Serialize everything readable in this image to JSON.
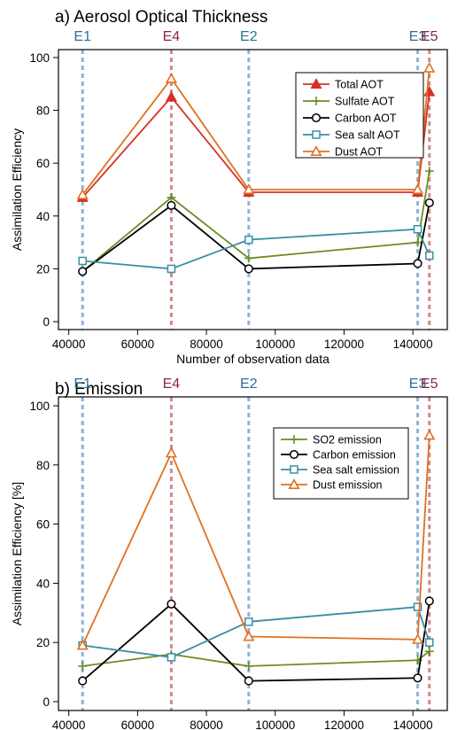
{
  "chart_data": [
    {
      "type": "line",
      "title": "a) Aerosol Optical Thickness",
      "xlabel": "Number of observation data",
      "ylabel": "Assimilation Efficiency",
      "xlim": [
        37000,
        150000
      ],
      "ylim": [
        -3,
        103
      ],
      "xticks": [
        40000,
        60000,
        80000,
        100000,
        120000,
        140000
      ],
      "yticks": [
        0,
        20,
        40,
        60,
        80,
        100
      ],
      "legend_position": "top-right",
      "experiments": [
        {
          "label": "E1",
          "x": 44000,
          "color": "#2f6f95",
          "line_color": "#8fb3d6"
        },
        {
          "label": "E4",
          "x": 69800,
          "color": "#8b2448",
          "line_color": "#d08a8a"
        },
        {
          "label": "E2",
          "x": 92300,
          "color": "#2f6f95",
          "line_color": "#8fb3d6"
        },
        {
          "label": "E3",
          "x": 141400,
          "color": "#2f6f95",
          "line_color": "#8fb3d6"
        },
        {
          "label": "E5",
          "x": 144800,
          "color": "#8b2448",
          "line_color": "#d08a8a"
        }
      ],
      "series": [
        {
          "name": "Total AOT",
          "color": "#d63027",
          "marker": "triangle-filled",
          "x": [
            44000,
            69800,
            92300,
            141400,
            144800
          ],
          "values": [
            47,
            85,
            49,
            49,
            87
          ]
        },
        {
          "name": "Sulfate AOT",
          "color": "#6b8e23",
          "marker": "plus",
          "x": [
            44000,
            69800,
            92300,
            141400,
            144800
          ],
          "values": [
            19,
            47,
            24,
            30,
            57
          ]
        },
        {
          "name": "Carbon AOT",
          "color": "#000000",
          "marker": "circle-open",
          "x": [
            44000,
            69800,
            92300,
            141400,
            144800
          ],
          "values": [
            19,
            44,
            20,
            22,
            45
          ]
        },
        {
          "name": "Sea salt AOT",
          "color": "#3a8ea4",
          "marker": "square-open",
          "x": [
            44000,
            69800,
            92300,
            141400,
            144800
          ],
          "values": [
            23,
            20,
            31,
            35,
            25
          ]
        },
        {
          "name": "Dust AOT",
          "color": "#e07020",
          "marker": "triangle-open",
          "x": [
            44000,
            69800,
            92300,
            141400,
            144800
          ],
          "values": [
            48,
            92,
            50,
            50,
            96
          ]
        }
      ]
    },
    {
      "type": "line",
      "title": "b) Emission",
      "xlabel": "Number of observation data",
      "ylabel": "Assimilation Efficiency [%]",
      "xlim": [
        37000,
        150000
      ],
      "ylim": [
        -3,
        103
      ],
      "xticks": [
        40000,
        60000,
        80000,
        100000,
        120000,
        140000
      ],
      "yticks": [
        0,
        20,
        40,
        60,
        80,
        100
      ],
      "legend_position": "top-right",
      "experiments": [
        {
          "label": "E1",
          "x": 44000,
          "color": "#2f6f95",
          "line_color": "#8fb3d6"
        },
        {
          "label": "E4",
          "x": 69800,
          "color": "#8b2448",
          "line_color": "#d08a8a"
        },
        {
          "label": "E2",
          "x": 92300,
          "color": "#2f6f95",
          "line_color": "#8fb3d6"
        },
        {
          "label": "E3",
          "x": 141400,
          "color": "#2f6f95",
          "line_color": "#8fb3d6"
        },
        {
          "label": "E5",
          "x": 144800,
          "color": "#8b2448",
          "line_color": "#d08a8a"
        }
      ],
      "series": [
        {
          "name": "SO2 emission",
          "color": "#6b8e23",
          "marker": "plus",
          "x": [
            44000,
            69800,
            92300,
            141400,
            144800
          ],
          "values": [
            12,
            16,
            12,
            14,
            17
          ]
        },
        {
          "name": "Carbon emission",
          "color": "#000000",
          "marker": "circle-open",
          "x": [
            44000,
            69800,
            92300,
            141400,
            144800
          ],
          "values": [
            7,
            33,
            7,
            8,
            34
          ]
        },
        {
          "name": "Sea salt emission",
          "color": "#3a8ea4",
          "marker": "square-open",
          "x": [
            44000,
            69800,
            92300,
            141400,
            144800
          ],
          "values": [
            19,
            15,
            27,
            32,
            20
          ]
        },
        {
          "name": "Dust emission",
          "color": "#e07020",
          "marker": "triangle-open",
          "x": [
            44000,
            69800,
            92300,
            141400,
            144800
          ],
          "values": [
            19,
            84,
            22,
            21,
            90
          ]
        }
      ]
    }
  ]
}
